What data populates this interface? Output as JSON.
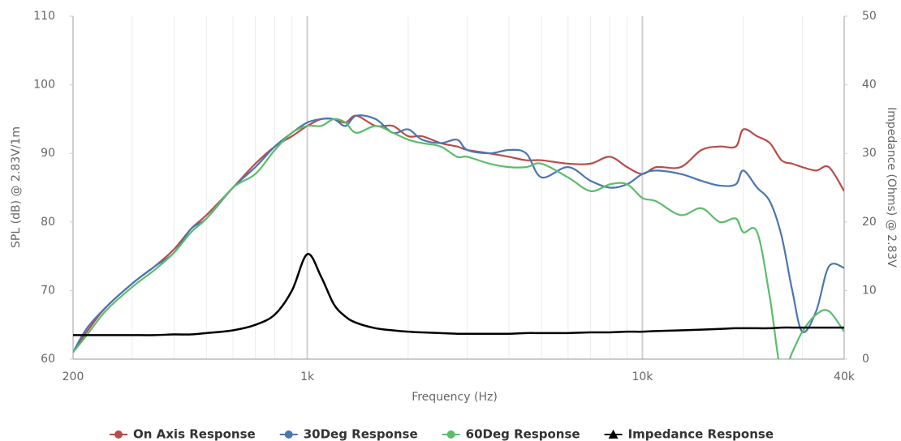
{
  "chart_data": {
    "type": "line",
    "xlabel": "Frequency (Hz)",
    "ylabel": "SPL (dB) @ 2.83V/1m",
    "y2label": "Impedance (Ohms) @ 2.83V",
    "xscale": "log",
    "grid": true,
    "legend": "bottom",
    "xlim": [
      200,
      40000
    ],
    "xticks": [
      200,
      {
        "value": 1000,
        "label": "1k"
      },
      {
        "value": 10000,
        "label": "10k"
      },
      {
        "value": 40000,
        "label": "40k"
      }
    ],
    "ylim": [
      60,
      110
    ],
    "yticks": [
      60,
      70,
      80,
      90,
      100,
      110
    ],
    "y2lim": [
      0,
      50
    ],
    "y2ticks": [
      0,
      10,
      20,
      30,
      40,
      50
    ],
    "x": [
      200,
      220,
      250,
      300,
      350,
      400,
      450,
      500,
      600,
      700,
      800,
      900,
      1000,
      1100,
      1200,
      1300,
      1400,
      1600,
      1800,
      2000,
      2200,
      2500,
      2800,
      3000,
      3500,
      4000,
      4500,
      5000,
      6000,
      7000,
      8000,
      9000,
      10000,
      11000,
      13000,
      15000,
      17000,
      19000,
      20000,
      22000,
      24000,
      26000,
      28000,
      30000,
      33000,
      36000,
      40000
    ],
    "series": [
      {
        "name": "On Axis Response",
        "color": "#b84c48",
        "values": [
          61,
          64,
          67.5,
          71,
          73.5,
          76,
          79,
          81,
          85,
          88.5,
          91,
          92.5,
          94,
          95,
          95,
          94.5,
          95.5,
          94,
          94,
          92.5,
          92.5,
          91.5,
          91,
          90.5,
          90,
          89.5,
          89,
          89,
          88.5,
          88.5,
          89.5,
          88,
          87,
          88,
          88,
          90.5,
          91,
          91,
          93.5,
          92.5,
          91.5,
          89,
          88.5,
          88,
          87.5,
          88,
          84.5
        ]
      },
      {
        "name": "30Deg Response",
        "color": "#4a76b0",
        "values": [
          61,
          64.5,
          67.5,
          71,
          73.5,
          75.5,
          79,
          80.5,
          85,
          88,
          91,
          93,
          94.5,
          95,
          95,
          94,
          95.5,
          95,
          93,
          93.5,
          92,
          91.5,
          92,
          90.5,
          90,
          90.5,
          90,
          86.5,
          88,
          86,
          85,
          85.5,
          87,
          87.5,
          87,
          86,
          85.3,
          85.5,
          87.5,
          85,
          83,
          78,
          70,
          64,
          67,
          73.5,
          73.3
        ]
      },
      {
        "name": "60Deg Response",
        "color": "#5bbd6b",
        "values": [
          61,
          63.5,
          67,
          70.5,
          73,
          75.5,
          78.5,
          80.5,
          85,
          87,
          90.5,
          93,
          94,
          94,
          95,
          94.5,
          93,
          94,
          93,
          92,
          91.5,
          91,
          89.5,
          89.5,
          88.5,
          88,
          88,
          88.5,
          86.5,
          84.5,
          85.5,
          85.5,
          83.5,
          83,
          81,
          82,
          80,
          80.5,
          78.5,
          78.5,
          69,
          58,
          61,
          64,
          66.5,
          67,
          64
        ]
      },
      {
        "name": "Impedance Response",
        "color": "#000000",
        "axis": "y2",
        "values": [
          3.5,
          3.5,
          3.5,
          3.5,
          3.5,
          3.6,
          3.6,
          3.8,
          4.2,
          5,
          6.5,
          10,
          15.3,
          12,
          8,
          6.2,
          5.3,
          4.5,
          4.2,
          4,
          3.9,
          3.8,
          3.7,
          3.7,
          3.7,
          3.7,
          3.8,
          3.8,
          3.8,
          3.9,
          3.9,
          4,
          4,
          4.1,
          4.2,
          4.3,
          4.4,
          4.5,
          4.5,
          4.5,
          4.5,
          4.6,
          4.6,
          4.6,
          4.6,
          4.6,
          4.6
        ]
      }
    ]
  }
}
